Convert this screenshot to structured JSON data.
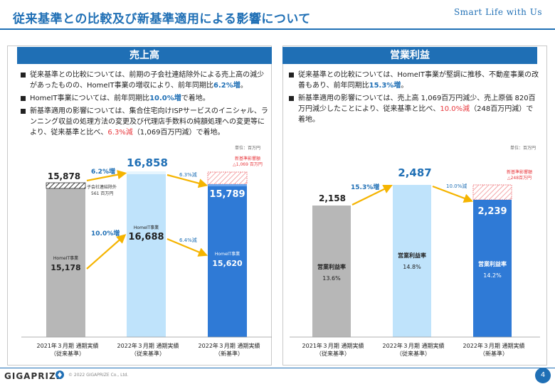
{
  "header": {
    "title": "従来基準との比較及び新基準適用による影響について",
    "brand": "Smart Life with Us"
  },
  "left": {
    "heading": "売上高",
    "bullets": [
      {
        "pre": "従来基準との比較については、前期の子会社連結除外による売上高の減少があったものの、HomeIT事業の増収により、前年同期比",
        "hl": "6.2%増",
        "post": "。"
      },
      {
        "pre": "HomeIT事業については、前年同期比",
        "hl": "10.0%増",
        "post": "で着地。"
      },
      {
        "pre": "新基準適用の影響については、集合住宅向けISPサービスのイニシャル、ランニング収益の処理方法の変更及び代理店手数料の純額処理への変更等により、従来基準と比べ、",
        "hl": "6.3%減",
        "post": "（1,069百万円減）で着地。"
      }
    ],
    "unit": "単位：百万円",
    "chart_data": {
      "type": "bar",
      "title": "売上高",
      "categories": [
        "2021年３月期 通期実績（従来基準）",
        "2022年３月期 通期実績（従来基準）",
        "2022年３月期 通期実績（新基準）"
      ],
      "series": [
        {
          "name": "HomeIT事業",
          "values": [
            15178,
            16688,
            15620
          ]
        },
        {
          "name": "子会社連結除外",
          "values": [
            561,
            0,
            0
          ]
        }
      ],
      "totals": [
        15878,
        16858,
        15789
      ],
      "impact_note": [
        "新基準影響額",
        "△1,069 百万円"
      ],
      "annotations": [
        "6.2%増",
        "10.0%増",
        "6.3%減",
        "6.4%減"
      ]
    },
    "labels": {
      "total1": "15,878",
      "total2": "16,858",
      "total3": "15,789",
      "seg1_name": "HomeIT事業",
      "seg1_val": "15,178",
      "seg2_name": "HomeIT事業",
      "seg2_val": "16,688",
      "seg3_name": "HomeIT事業",
      "seg3_val": "15,620",
      "exclude_note": "子会社連結除外",
      "exclude_val": "561 百万円",
      "impact_line1": "新基準影響額",
      "impact_line2": "△1,069 百万円",
      "pct_total": "6.2%増",
      "pct_homeit": "10.0%増",
      "pct_new_total": "6.3%減",
      "pct_new_homeit": "6.4%減",
      "x1a": "2021年３月期 通期実績",
      "x1b": "（従来基準）",
      "x2a": "2022年３月期 通期実績",
      "x2b": "（従来基準）",
      "x3a": "2022年３月期 通期実績",
      "x3b": "（新基準）"
    }
  },
  "right": {
    "heading": "営業利益",
    "bullets": [
      {
        "pre": "従来基準との比較については、HomeIT事業が堅調に推移、不動産事業の改善もあり、前年同期比",
        "hl": "15.3%増",
        "post": "。"
      },
      {
        "pre": "新基準適用の影響については、売上高 1,069百万円減少、売上原価 820百万円減少したことにより、従来基準と比べ、",
        "hl": "10.0%減",
        "post": "（248百万円減）で着地。"
      }
    ],
    "unit": "単位：百万円",
    "chart_data": {
      "type": "bar",
      "title": "営業利益",
      "categories": [
        "2021年３月期 通期実績（従来基準）",
        "2022年３月期 通期実績（従来基準）",
        "2022年３月期 通期実績（新基準）"
      ],
      "values": [
        2158,
        2487,
        2239
      ],
      "margins": [
        "13.6%",
        "14.8%",
        "14.2%"
      ],
      "impact_note": [
        "新基準影響額",
        "△248百万円"
      ],
      "annotations": [
        "15.3%増",
        "10.0%減"
      ]
    },
    "labels": {
      "v1": "2,158",
      "v2": "2,487",
      "v3": "2,239",
      "m_name1": "営業利益率",
      "m_name2": "営業利益率",
      "m_name3": "営業利益率",
      "m1": "13.6%",
      "m2": "14.8%",
      "m3": "14.2%",
      "pct_up": "15.3%増",
      "pct_down": "10.0%減",
      "impact_line1": "新基準影響額",
      "impact_line2": "△248百万円",
      "x1a": "2021年３月期 通期実績",
      "x1b": "（従来基準）",
      "x2a": "2022年３月期 通期実績",
      "x2b": "（従来基準）",
      "x3a": "2022年３月期 通期実績",
      "x3b": "（新基準）"
    }
  },
  "footer": {
    "logo": "GIGAPRIZE",
    "copyright": "© 2022 GIGAPRIZE Co., Ltd.",
    "page": "4"
  },
  "colors": {
    "primary": "#1f6fb5",
    "bar_gray": "#b7b7b7",
    "bar_light": "#bfe3fb",
    "bar_blue": "#2f7ad6",
    "arrow": "#f5b400",
    "red": "#e8383d"
  }
}
